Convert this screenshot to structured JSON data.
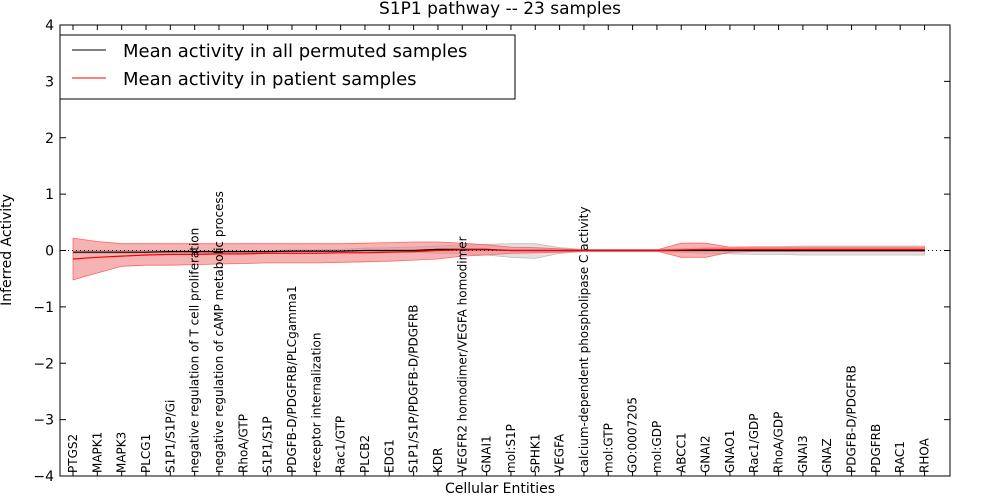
{
  "chart_data": {
    "type": "line",
    "title": "S1P1 pathway -- 23 samples",
    "xlabel": "Cellular Entities",
    "ylabel": "Inferred Activity",
    "ylim": [
      -4,
      4
    ],
    "yticks": [
      "−4",
      "−3",
      "−2",
      "−1",
      "0",
      "1",
      "2",
      "3",
      "4"
    ],
    "legend_position": "top-left",
    "categories": [
      "PTGS2",
      "MAPK1",
      "MAPK3",
      "PLCG1",
      "S1P1/S1P/Gi",
      "negative regulation of T cell proliferation",
      "negative regulation of cAMP metabolic process",
      "RhoA/GTP",
      "S1P1/S1P",
      "PDGFB-D/PDGFRB/PLCgamma1",
      "receptor internalization",
      "Rac1/GTP",
      "PLCB2",
      "EDG1",
      "S1P1/S1P/PDGFB-D/PDGFRB",
      "KDR",
      "VEGFR2 homodimer/VEGFA homodimer",
      "GNAI1",
      "mol:S1P",
      "SPHK1",
      "VEGFA",
      "calcium-dependent phospholipase C activity",
      "mol:GTP",
      "GO:0007205",
      "mol:GDP",
      "ABCC1",
      "GNAI2",
      "GNAO1",
      "Rac1/GDP",
      "RhoA/GDP",
      "GNAI3",
      "GNAZ",
      "PDGFB-D/PDGFRB",
      "PDGFRB",
      "RAC1",
      "RHOA"
    ],
    "series": [
      {
        "name": "Mean activity in all permuted samples",
        "color": "#000000",
        "values": [
          -0.03,
          -0.03,
          -0.03,
          -0.03,
          -0.02,
          -0.02,
          -0.02,
          -0.02,
          -0.02,
          -0.01,
          -0.01,
          -0.01,
          0.0,
          0.0,
          0.0,
          0.02,
          0.02,
          0.02,
          0.0,
          0.0,
          0.0,
          0.0,
          0.0,
          0.0,
          0.0,
          0.0,
          0.0,
          0.0,
          0.0,
          0.0,
          0.0,
          0.0,
          0.0,
          0.0,
          0.0,
          0.0
        ],
        "band_lower": [
          -0.05,
          -0.05,
          -0.05,
          -0.05,
          -0.04,
          -0.04,
          -0.04,
          -0.04,
          -0.04,
          -0.03,
          -0.03,
          -0.03,
          -0.03,
          -0.03,
          -0.03,
          -0.05,
          -0.06,
          -0.08,
          -0.12,
          -0.14,
          -0.05,
          -0.02,
          -0.02,
          -0.02,
          -0.02,
          -0.03,
          -0.05,
          -0.06,
          -0.07,
          -0.07,
          -0.08,
          -0.08,
          -0.08,
          -0.08,
          -0.08,
          -0.08
        ],
        "band_upper": [
          0.0,
          0.0,
          0.0,
          0.0,
          0.0,
          0.0,
          0.0,
          0.0,
          0.0,
          0.01,
          0.01,
          0.02,
          0.04,
          0.05,
          0.06,
          0.08,
          0.1,
          0.11,
          0.12,
          0.12,
          0.05,
          0.02,
          0.02,
          0.02,
          0.02,
          0.03,
          0.05,
          0.06,
          0.07,
          0.07,
          0.08,
          0.08,
          0.08,
          0.08,
          0.08,
          0.08
        ]
      },
      {
        "name": "Mean activity in patient samples",
        "color": "#ff0000",
        "values": [
          -0.15,
          -0.12,
          -0.1,
          -0.08,
          -0.07,
          -0.07,
          -0.06,
          -0.06,
          -0.05,
          -0.05,
          -0.05,
          -0.04,
          -0.04,
          -0.03,
          -0.02,
          0.0,
          0.01,
          0.01,
          0.0,
          0.0,
          0.0,
          0.0,
          0.0,
          0.0,
          0.0,
          0.01,
          0.02,
          0.02,
          0.02,
          0.02,
          0.02,
          0.02,
          0.02,
          0.02,
          0.02,
          0.02
        ],
        "band_lower": [
          -0.52,
          -0.4,
          -0.28,
          -0.26,
          -0.26,
          -0.25,
          -0.24,
          -0.23,
          -0.22,
          -0.22,
          -0.22,
          -0.21,
          -0.2,
          -0.19,
          -0.17,
          -0.15,
          -0.1,
          -0.08,
          -0.05,
          -0.04,
          -0.03,
          -0.01,
          -0.01,
          -0.01,
          -0.01,
          -0.12,
          -0.12,
          -0.03,
          -0.02,
          -0.02,
          -0.02,
          -0.02,
          -0.02,
          -0.02,
          -0.02,
          -0.02
        ],
        "band_upper": [
          0.22,
          0.16,
          0.12,
          0.12,
          0.12,
          0.12,
          0.12,
          0.12,
          0.12,
          0.12,
          0.12,
          0.12,
          0.13,
          0.14,
          0.15,
          0.15,
          0.13,
          0.1,
          0.06,
          0.05,
          0.03,
          0.01,
          0.01,
          0.01,
          0.01,
          0.13,
          0.13,
          0.06,
          0.06,
          0.06,
          0.06,
          0.06,
          0.06,
          0.06,
          0.06,
          0.06
        ]
      }
    ]
  }
}
